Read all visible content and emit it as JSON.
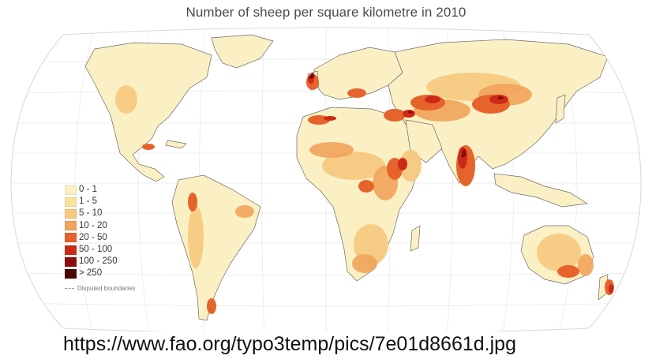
{
  "map": {
    "title": "Number of sheep per square kilometre in 2010",
    "legend": [
      {
        "label": "0 - 1",
        "color": "#fbf0c4"
      },
      {
        "label": "1 - 5",
        "color": "#f9e39c"
      },
      {
        "label": "5 - 10",
        "color": "#f6c97e"
      },
      {
        "label": "10 - 20",
        "color": "#f1a45a"
      },
      {
        "label": "20 - 50",
        "color": "#e6642c"
      },
      {
        "label": "50 - 100",
        "color": "#cc2a18"
      },
      {
        "label": "100 - 250",
        "color": "#8d0f0c"
      },
      {
        "label": "> 250",
        "color": "#4a0606"
      }
    ],
    "disputed_label": "Disputed boundaries"
  },
  "source": {
    "url": "https://www.fao.org/typo3temp/pics/7e01d8661d.jpg"
  }
}
